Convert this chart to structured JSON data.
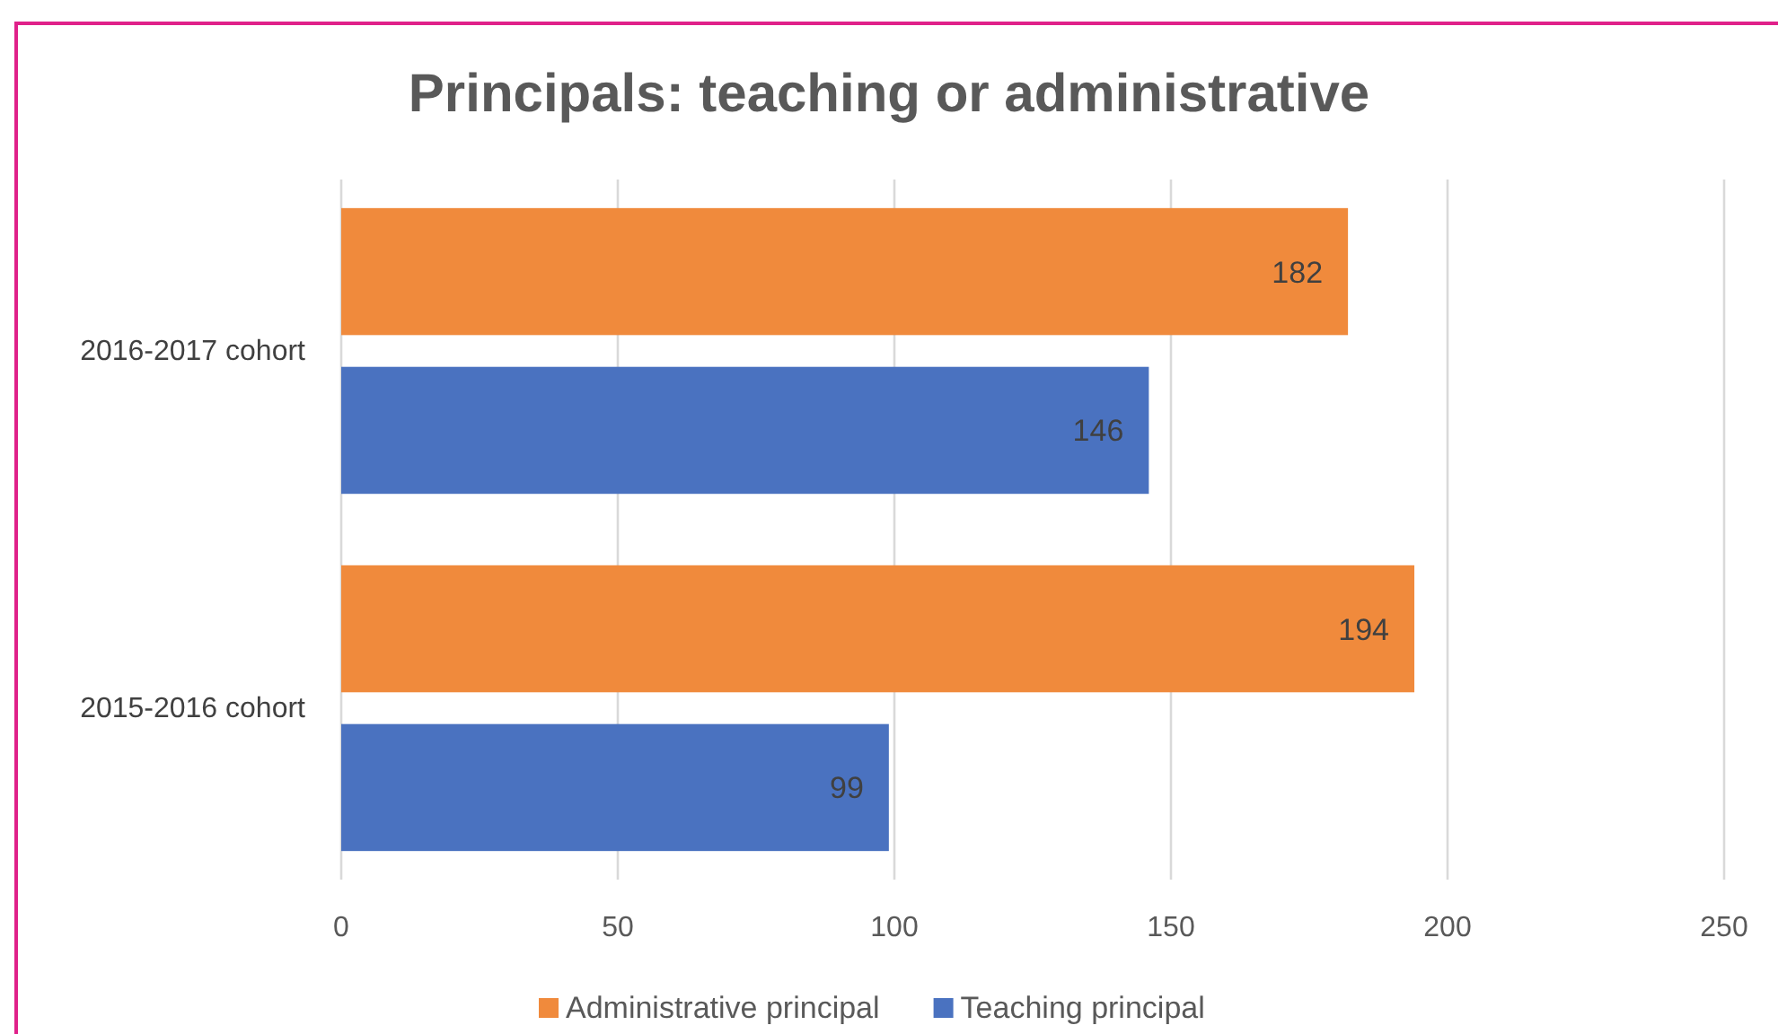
{
  "chart_data": {
    "type": "bar",
    "orientation": "horizontal",
    "title": "Principals: teaching or administrative",
    "categories": [
      "2016-2017 cohort",
      "2015-2016 cohort"
    ],
    "series": [
      {
        "name": "Administrative principal",
        "color": "#f08a3c",
        "values": [
          182,
          194
        ]
      },
      {
        "name": "Teaching principal",
        "color": "#4a72c0",
        "values": [
          146,
          99
        ]
      }
    ],
    "xlim": [
      0,
      250
    ],
    "xticks": [
      0,
      50,
      100,
      150,
      200,
      250
    ],
    "grid": "x",
    "legend": "bottom",
    "data_labels": true
  }
}
